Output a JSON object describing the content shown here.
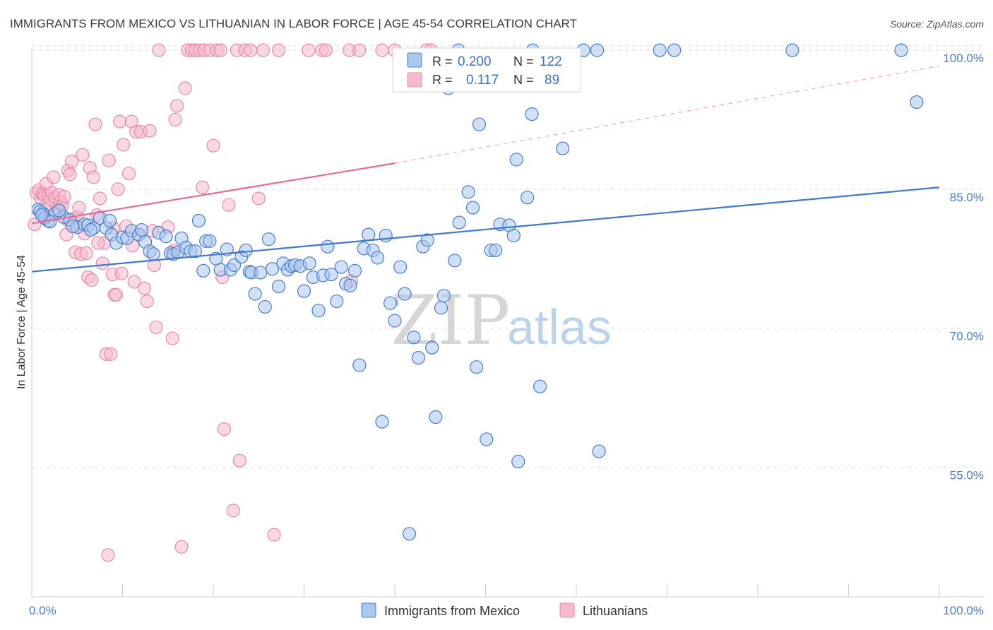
{
  "title": "IMMIGRANTS FROM MEXICO VS LITHUANIAN IN LABOR FORCE | AGE 45-54 CORRELATION CHART",
  "source": "Source: ZipAtlas.com",
  "watermark": {
    "zip": "ZIP",
    "atlas": "atlas"
  },
  "legend": {
    "r_label": "R =",
    "n_label": "N =",
    "rows": [
      {
        "r": "0.200",
        "n": "122"
      },
      {
        "r": "0.117",
        "n": "89"
      }
    ]
  },
  "colors": {
    "blue_fill": "#aac7ef",
    "blue_stroke": "#4a7cc9",
    "blue_line": "#3f78d4",
    "pink_fill": "#f6b9cd",
    "pink_stroke": "#e58aa8",
    "pink_line": "#e76a96",
    "grid": "#dddddd"
  },
  "chart_data": {
    "type": "scatter",
    "title": "IMMIGRANTS FROM MEXICO VS LITHUANIAN IN LABOR FORCE | AGE 45-54 CORRELATION CHART",
    "xlabel": "",
    "ylabel": "In Labor Force | Age 45-54",
    "xlim": [
      0,
      100
    ],
    "ylim": [
      41,
      101
    ],
    "x_tick_labels": [
      "0.0%",
      "100.0%"
    ],
    "y_ticks": [
      55,
      70,
      85,
      100
    ],
    "y_tick_labels": [
      "55.0%",
      "70.0%",
      "85.0%",
      "100.0%"
    ],
    "grid": true,
    "legend_position": "top-center",
    "series": [
      {
        "name": "Immigrants from Mexico",
        "r": 0.2,
        "n": 122,
        "trend": {
          "x": [
            0,
            100
          ],
          "y": [
            76.1,
            85.2
          ]
        },
        "points": [
          [
            0.7,
            82.8
          ],
          [
            1.2,
            82.4
          ],
          [
            1.8,
            81.6
          ],
          [
            2.5,
            82.3
          ],
          [
            3.5,
            82.0
          ],
          [
            4.2,
            81.7
          ],
          [
            5.0,
            80.9
          ],
          [
            5.8,
            81.2
          ],
          [
            6.2,
            81.1
          ],
          [
            6.8,
            80.8
          ],
          [
            7.5,
            81.9
          ],
          [
            8.2,
            80.8
          ],
          [
            8.8,
            80.1
          ],
          [
            9.3,
            79.2
          ],
          [
            10.0,
            79.8
          ],
          [
            10.5,
            79.7
          ],
          [
            11.0,
            80.5
          ],
          [
            11.8,
            80.1
          ],
          [
            12.5,
            79.3
          ],
          [
            13.0,
            78.3
          ],
          [
            13.4,
            78.0
          ],
          [
            14.0,
            80.3
          ],
          [
            14.8,
            79.9
          ],
          [
            15.3,
            78.1
          ],
          [
            15.6,
            78.0
          ],
          [
            16.1,
            78.2
          ],
          [
            16.5,
            79.7
          ],
          [
            17.0,
            78.7
          ],
          [
            17.5,
            78.3
          ],
          [
            18.0,
            78.3
          ],
          [
            18.4,
            81.6
          ],
          [
            18.9,
            76.2
          ],
          [
            19.2,
            79.4
          ],
          [
            19.6,
            79.4
          ],
          [
            20.3,
            77.5
          ],
          [
            20.8,
            76.3
          ],
          [
            21.5,
            78.5
          ],
          [
            21.9,
            76.3
          ],
          [
            22.3,
            76.8
          ],
          [
            23.1,
            77.7
          ],
          [
            23.6,
            78.4
          ],
          [
            24.0,
            76.1
          ],
          [
            24.2,
            76.0
          ],
          [
            24.6,
            73.7
          ],
          [
            25.2,
            76.0
          ],
          [
            25.7,
            72.3
          ],
          [
            26.1,
            79.6
          ],
          [
            26.5,
            76.4
          ],
          [
            27.2,
            74.5
          ],
          [
            27.7,
            77.0
          ],
          [
            28.2,
            76.3
          ],
          [
            28.6,
            76.7
          ],
          [
            29.0,
            76.8
          ],
          [
            29.6,
            76.7
          ],
          [
            30.0,
            74.0
          ],
          [
            30.6,
            77.0
          ],
          [
            31.0,
            75.5
          ],
          [
            31.6,
            71.9
          ],
          [
            32.1,
            75.7
          ],
          [
            32.6,
            78.8
          ],
          [
            33.0,
            75.8
          ],
          [
            33.6,
            72.9
          ],
          [
            34.1,
            76.6
          ],
          [
            34.6,
            74.8
          ],
          [
            35.1,
            74.6
          ],
          [
            35.6,
            76.2
          ],
          [
            36.1,
            66.0
          ],
          [
            36.6,
            78.6
          ],
          [
            37.1,
            80.1
          ],
          [
            37.6,
            78.4
          ],
          [
            38.1,
            77.6
          ],
          [
            38.6,
            59.9
          ],
          [
            39.0,
            80.0
          ],
          [
            39.5,
            72.7
          ],
          [
            40.0,
            70.8
          ],
          [
            40.6,
            76.6
          ],
          [
            41.1,
            73.7
          ],
          [
            41.6,
            47.8
          ],
          [
            42.1,
            69.0
          ],
          [
            42.6,
            66.8
          ],
          [
            43.1,
            78.8
          ],
          [
            43.6,
            79.5
          ],
          [
            44.1,
            67.9
          ],
          [
            44.5,
            60.4
          ],
          [
            45.1,
            72.2
          ],
          [
            45.4,
            73.5
          ],
          [
            45.9,
            95.9
          ],
          [
            46.6,
            77.3
          ],
          [
            47.1,
            81.4
          ],
          [
            48.1,
            84.7
          ],
          [
            48.6,
            83.0
          ],
          [
            49.0,
            65.8
          ],
          [
            49.3,
            92.0
          ],
          [
            50.1,
            58.0
          ],
          [
            50.6,
            78.4
          ],
          [
            51.1,
            78.4
          ],
          [
            51.6,
            81.2
          ],
          [
            52.6,
            81.1
          ],
          [
            53.1,
            80.0
          ],
          [
            53.4,
            88.2
          ],
          [
            53.6,
            55.6
          ],
          [
            54.6,
            84.1
          ],
          [
            55.1,
            93.1
          ],
          [
            56.0,
            63.7
          ],
          [
            58.5,
            89.4
          ],
          [
            62.5,
            56.7
          ],
          [
            0.9,
            82.6
          ],
          [
            1.4,
            81.9
          ],
          [
            2.0,
            81.5
          ],
          [
            3.0,
            82.7
          ],
          [
            4.5,
            81.0
          ],
          [
            6.5,
            80.6
          ],
          [
            8.6,
            81.6
          ],
          [
            12.1,
            80.6
          ],
          [
            47.0,
            100
          ],
          [
            55.2,
            100
          ],
          [
            60.8,
            100
          ],
          [
            62.3,
            100
          ],
          [
            69.2,
            100
          ],
          [
            70.8,
            100
          ],
          [
            83.8,
            100
          ],
          [
            95.8,
            100
          ],
          [
            97.5,
            94.4
          ],
          [
            1.1,
            82.2
          ]
        ]
      },
      {
        "name": "Lithuanians",
        "r": 0.117,
        "n": 89,
        "trend": {
          "x": [
            0,
            40
          ],
          "y": [
            81.3,
            87.8
          ]
        },
        "trend_dashed": {
          "x": [
            40,
            100
          ],
          "y": [
            87.8,
            98.3
          ]
        },
        "points": [
          [
            0.3,
            81.2
          ],
          [
            0.5,
            84.6
          ],
          [
            0.8,
            84.9
          ],
          [
            1.0,
            84.0
          ],
          [
            1.2,
            84.5
          ],
          [
            1.4,
            84.3
          ],
          [
            1.6,
            85.6
          ],
          [
            1.8,
            84.3
          ],
          [
            2.0,
            83.8
          ],
          [
            2.2,
            84.6
          ],
          [
            2.4,
            86.3
          ],
          [
            2.6,
            84.1
          ],
          [
            2.8,
            83.0
          ],
          [
            3.0,
            84.4
          ],
          [
            3.2,
            83.6
          ],
          [
            3.4,
            83.3
          ],
          [
            3.6,
            84.2
          ],
          [
            3.8,
            80.1
          ],
          [
            4.0,
            87.0
          ],
          [
            4.2,
            86.6
          ],
          [
            4.4,
            88.0
          ],
          [
            4.6,
            81.4
          ],
          [
            4.8,
            78.2
          ],
          [
            5.0,
            82.0
          ],
          [
            5.2,
            83.0
          ],
          [
            5.4,
            78.0
          ],
          [
            5.6,
            88.7
          ],
          [
            5.8,
            80.2
          ],
          [
            6.0,
            78.1
          ],
          [
            6.2,
            75.5
          ],
          [
            6.4,
            87.3
          ],
          [
            6.6,
            75.2
          ],
          [
            6.8,
            86.3
          ],
          [
            7.0,
            92.0
          ],
          [
            7.2,
            82.2
          ],
          [
            7.5,
            84.0
          ],
          [
            7.8,
            77.0
          ],
          [
            8.0,
            79.2
          ],
          [
            8.2,
            67.2
          ],
          [
            8.4,
            45.5
          ],
          [
            8.5,
            88.1
          ],
          [
            8.7,
            67.2
          ],
          [
            8.9,
            75.8
          ],
          [
            9.1,
            73.6
          ],
          [
            9.3,
            73.6
          ],
          [
            9.5,
            85.0
          ],
          [
            9.7,
            92.3
          ],
          [
            9.9,
            75.9
          ],
          [
            10.1,
            89.8
          ],
          [
            10.4,
            81.0
          ],
          [
            10.7,
            86.7
          ],
          [
            11.0,
            92.3
          ],
          [
            11.3,
            75.0
          ],
          [
            11.5,
            91.2
          ],
          [
            11.8,
            80.1
          ],
          [
            12.0,
            91.2
          ],
          [
            12.4,
            74.3
          ],
          [
            12.7,
            72.9
          ],
          [
            13.0,
            91.3
          ],
          [
            13.3,
            80.5
          ],
          [
            13.5,
            76.8
          ],
          [
            13.7,
            70.1
          ],
          [
            14.0,
            100
          ],
          [
            15.0,
            80.9
          ],
          [
            15.5,
            68.9
          ],
          [
            15.7,
            78.4
          ],
          [
            15.8,
            92.5
          ],
          [
            16.0,
            94.0
          ],
          [
            16.5,
            46.4
          ],
          [
            16.9,
            95.9
          ],
          [
            17.2,
            100
          ],
          [
            17.6,
            100
          ],
          [
            18.0,
            100
          ],
          [
            18.5,
            100
          ],
          [
            19.0,
            100
          ],
          [
            19.6,
            100
          ],
          [
            20.0,
            89.7
          ],
          [
            20.4,
            100
          ],
          [
            20.8,
            100
          ],
          [
            21.2,
            59.1
          ],
          [
            21.7,
            83.3
          ],
          [
            22.2,
            50.3
          ],
          [
            22.6,
            100
          ],
          [
            22.9,
            55.7
          ],
          [
            23.5,
            100
          ],
          [
            24.1,
            100
          ],
          [
            25.5,
            100
          ],
          [
            26.7,
            47.7
          ],
          [
            27.2,
            100
          ],
          [
            30.5,
            100
          ],
          [
            32.0,
            100
          ],
          [
            32.4,
            100
          ],
          [
            35.0,
            100
          ],
          [
            38.6,
            100
          ],
          [
            35.2,
            75.1
          ],
          [
            36.1,
            100
          ],
          [
            40.0,
            100
          ],
          [
            43.5,
            100
          ],
          [
            44.0,
            100
          ],
          [
            1.5,
            82.8
          ],
          [
            2.7,
            82.5
          ],
          [
            3.9,
            81.7
          ],
          [
            7.3,
            79.2
          ],
          [
            9.0,
            80.8
          ],
          [
            11.1,
            78.9
          ],
          [
            18.8,
            85.2
          ],
          [
            21.0,
            75.5
          ],
          [
            25.0,
            84.0
          ]
        ]
      }
    ]
  },
  "bottom_legend": [
    "Immigrants from Mexico",
    "Lithuanians"
  ],
  "axis_labels": {
    "y": "In Labor Force | Age 45-54"
  }
}
